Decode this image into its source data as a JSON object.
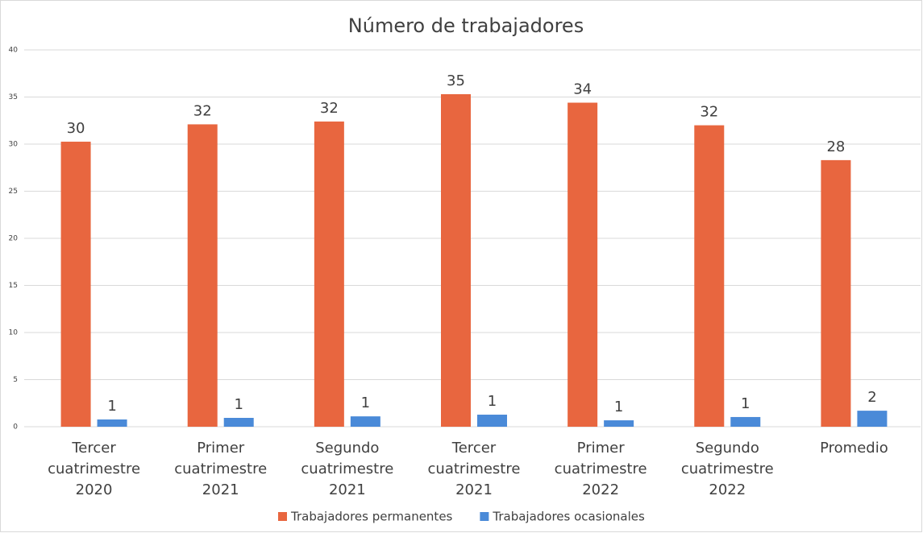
{
  "chart_data": {
    "type": "bar",
    "title": "Número de trabajadores",
    "categories": [
      "Tercer cuatrimestre 2020",
      "Primer cuatrimestre 2021",
      "Segundo cuatrimestre 2021",
      "Tercer cuatrimestre 2021",
      "Primer cuatrimestre 2022",
      "Segundo cuatrimestre 2022",
      "Promedio"
    ],
    "series": [
      {
        "name": "Trabajadores permanentes",
        "color": "#e8663f",
        "values": [
          30.26,
          32.1,
          32.4,
          35.3,
          34.4,
          32.0,
          28.3
        ],
        "value_labels": [
          "30",
          "32",
          "32",
          "35",
          "34",
          "32",
          "28"
        ]
      },
      {
        "name": "Trabajadores ocasionales",
        "color": "#4a8ad8",
        "values": [
          0.77,
          0.94,
          1.1,
          1.28,
          0.68,
          1.03,
          1.7
        ],
        "value_labels": [
          "1",
          "1",
          "1",
          "1",
          "1",
          "1",
          "2"
        ]
      }
    ],
    "ylim": [
      0,
      40
    ],
    "yticks": [
      0,
      5,
      10,
      15,
      20,
      25,
      30,
      35,
      40
    ],
    "grid": true,
    "legend": "bottom"
  }
}
